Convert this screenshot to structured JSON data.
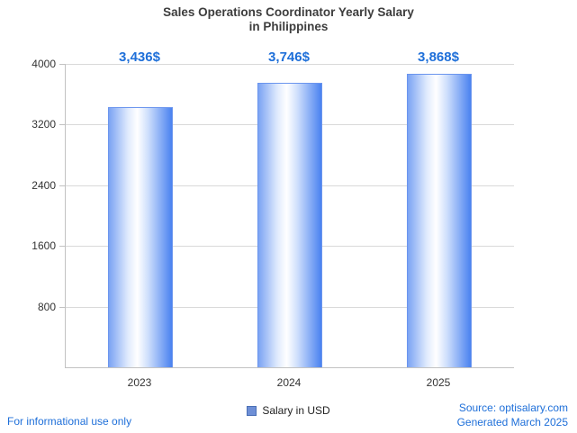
{
  "chart_data": {
    "type": "bar",
    "title_line1": "Sales Operations Coordinator Yearly Salary",
    "title_line2": "in Philippines",
    "categories": [
      "2023",
      "2024",
      "2025"
    ],
    "values": [
      3436,
      3746,
      3868
    ],
    "value_labels": [
      "3,436$",
      "3,746$",
      "3,868$"
    ],
    "legend": "Salary in USD",
    "xlabel": "",
    "ylabel": "",
    "ylim": [
      0,
      4000
    ],
    "yticks": [
      800,
      1600,
      2400,
      3200,
      4000
    ],
    "grid": true,
    "legend_position": "bottom-center"
  },
  "footer": {
    "disclaimer": "For informational use only",
    "source": "Source: optisalary.com",
    "generated": "Generated March 2025"
  },
  "colors": {
    "accent_text": "#1e6fd9",
    "grid": "#d9d9d9",
    "axis": "#c2c2c2",
    "title": "#3d3d3d",
    "legend_swatch": "#6e8fd6"
  }
}
